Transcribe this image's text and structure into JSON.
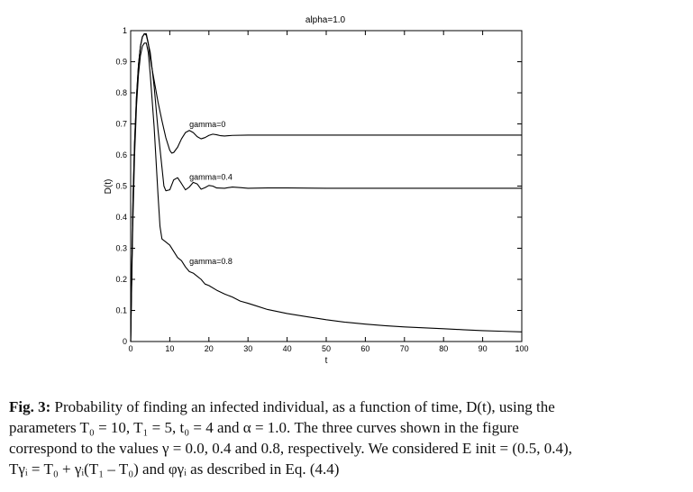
{
  "chart_data": {
    "type": "line",
    "title": "alpha=1.0",
    "xlabel": "t",
    "ylabel": "D(t)",
    "xlim": [
      0,
      100
    ],
    "ylim": [
      0,
      1
    ],
    "x_ticks": [
      0,
      10,
      20,
      30,
      40,
      50,
      60,
      70,
      80,
      90,
      100
    ],
    "y_ticks": [
      0,
      0.1,
      0.2,
      0.3,
      0.4,
      0.5,
      0.6,
      0.7,
      0.8,
      0.9,
      1
    ],
    "x_tick_labels": [
      "0",
      "10",
      "20",
      "30",
      "40",
      "50",
      "60",
      "70",
      "80",
      "90",
      "100"
    ],
    "y_tick_labels": [
      "0",
      "0.1",
      "0.2",
      "0.3",
      "0.4",
      "0.5",
      "0.6",
      "0.7",
      "0.8",
      "0.9",
      "1"
    ],
    "grid": false,
    "series": [
      {
        "name": "gamma=0",
        "color": "#000000",
        "points": [
          [
            0,
            0
          ],
          [
            0.3,
            0.24
          ],
          [
            0.6,
            0.46
          ],
          [
            1,
            0.64
          ],
          [
            1.5,
            0.79
          ],
          [
            2,
            0.89
          ],
          [
            2.5,
            0.95
          ],
          [
            3,
            0.98
          ],
          [
            3.5,
            0.99
          ],
          [
            4,
            0.99
          ],
          [
            4.5,
            0.96
          ],
          [
            5,
            0.91
          ],
          [
            6,
            0.84
          ],
          [
            7,
            0.77
          ],
          [
            8,
            0.71
          ],
          [
            9,
            0.655
          ],
          [
            10,
            0.615
          ],
          [
            10.5,
            0.606
          ],
          [
            11,
            0.608
          ],
          [
            12,
            0.625
          ],
          [
            13,
            0.652
          ],
          [
            14,
            0.672
          ],
          [
            15,
            0.679
          ],
          [
            16,
            0.672
          ],
          [
            17,
            0.659
          ],
          [
            18,
            0.652
          ],
          [
            19,
            0.656
          ],
          [
            20,
            0.663
          ],
          [
            21,
            0.667
          ],
          [
            22,
            0.665
          ],
          [
            23,
            0.662
          ],
          [
            24,
            0.661
          ],
          [
            26,
            0.663
          ],
          [
            30,
            0.664
          ],
          [
            50,
            0.664
          ],
          [
            100,
            0.664
          ]
        ]
      },
      {
        "name": "gamma=0.4",
        "color": "#000000",
        "points": [
          [
            0,
            0
          ],
          [
            0.3,
            0.24
          ],
          [
            0.6,
            0.46
          ],
          [
            1,
            0.64
          ],
          [
            1.5,
            0.79
          ],
          [
            2,
            0.89
          ],
          [
            2.5,
            0.95
          ],
          [
            3,
            0.98
          ],
          [
            3.5,
            0.99
          ],
          [
            4,
            0.985
          ],
          [
            5,
            0.93
          ],
          [
            6,
            0.82
          ],
          [
            7,
            0.68
          ],
          [
            8,
            0.56
          ],
          [
            8.5,
            0.5
          ],
          [
            9,
            0.485
          ],
          [
            10,
            0.488
          ],
          [
            11,
            0.52
          ],
          [
            12,
            0.527
          ],
          [
            13,
            0.508
          ],
          [
            14,
            0.488
          ],
          [
            15,
            0.497
          ],
          [
            16,
            0.512
          ],
          [
            17,
            0.507
          ],
          [
            18,
            0.49
          ],
          [
            19,
            0.495
          ],
          [
            20,
            0.502
          ],
          [
            21,
            0.5
          ],
          [
            22,
            0.494
          ],
          [
            24,
            0.493
          ],
          [
            26,
            0.497
          ],
          [
            28,
            0.495
          ],
          [
            30,
            0.493
          ],
          [
            35,
            0.494
          ],
          [
            40,
            0.494
          ],
          [
            50,
            0.493
          ],
          [
            100,
            0.493
          ]
        ]
      },
      {
        "name": "gamma=0.8",
        "color": "#000000",
        "points": [
          [
            0,
            0
          ],
          [
            0.5,
            0.35
          ],
          [
            1,
            0.6
          ],
          [
            1.5,
            0.76
          ],
          [
            2,
            0.86
          ],
          [
            2.5,
            0.92
          ],
          [
            3,
            0.95
          ],
          [
            3.5,
            0.96
          ],
          [
            4,
            0.96
          ],
          [
            4.5,
            0.93
          ],
          [
            5,
            0.86
          ],
          [
            6,
            0.69
          ],
          [
            7,
            0.47
          ],
          [
            7.5,
            0.37
          ],
          [
            8,
            0.33
          ],
          [
            9,
            0.32
          ],
          [
            10,
            0.31
          ],
          [
            11,
            0.29
          ],
          [
            12,
            0.27
          ],
          [
            13,
            0.26
          ],
          [
            14,
            0.24
          ],
          [
            15,
            0.225
          ],
          [
            16,
            0.22
          ],
          [
            17,
            0.21
          ],
          [
            18,
            0.2
          ],
          [
            19,
            0.185
          ],
          [
            20,
            0.18
          ],
          [
            22,
            0.165
          ],
          [
            24,
            0.153
          ],
          [
            26,
            0.143
          ],
          [
            28,
            0.13
          ],
          [
            30,
            0.123
          ],
          [
            32,
            0.115
          ],
          [
            35,
            0.103
          ],
          [
            40,
            0.09
          ],
          [
            45,
            0.08
          ],
          [
            50,
            0.07
          ],
          [
            55,
            0.062
          ],
          [
            60,
            0.056
          ],
          [
            65,
            0.051
          ],
          [
            70,
            0.047
          ],
          [
            75,
            0.044
          ],
          [
            80,
            0.041
          ],
          [
            85,
            0.038
          ],
          [
            90,
            0.035
          ],
          [
            95,
            0.033
          ],
          [
            100,
            0.031
          ]
        ]
      }
    ],
    "annotations": [
      {
        "text": "gamma=0",
        "x": 15,
        "y": 0.69
      },
      {
        "text": "gamma=0.4",
        "x": 15,
        "y": 0.52
      },
      {
        "text": "gamma=0.8",
        "x": 15,
        "y": 0.25
      }
    ]
  },
  "caption": {
    "label": "Fig. 3:",
    "line1": " Probability of finding  an infected individual, as a function of time, D(t), using  the",
    "line2": "parameters T₀ = 10, T₁ = 5, t₀ = 4 and  α = 1.0.  The  three curves  shown  in the figure",
    "line3": "correspond to the values  γ = 0.0, 0.4 and  0.8, respectively. We considered E init = (0.5, 0.4),",
    "line4": "Tγᵢ = T₀ + γᵢ(T₁ –  T₀) and  φγᵢ  as described in Eq.  (4.4)"
  }
}
